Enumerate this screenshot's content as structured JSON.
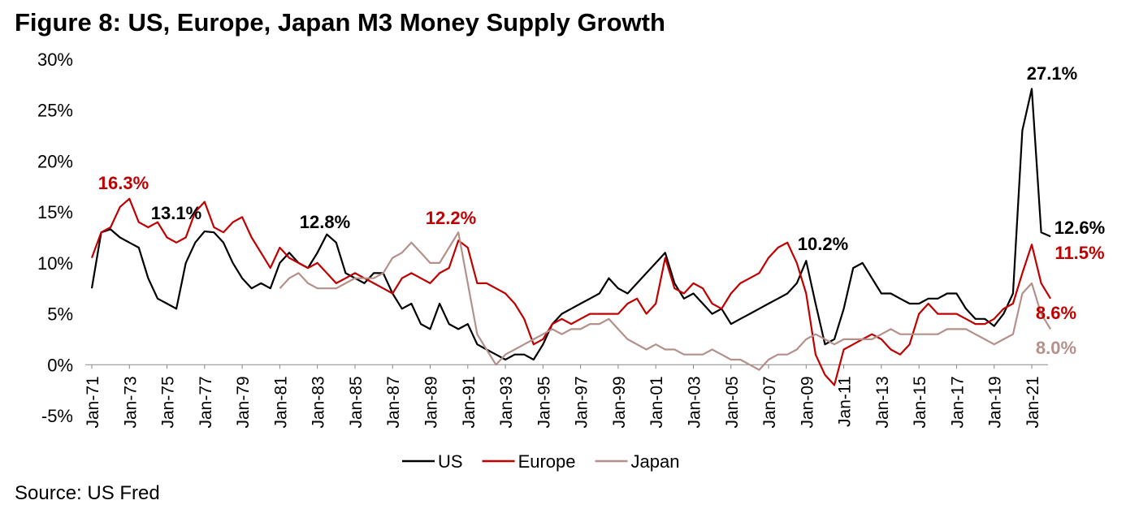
{
  "chart_data": {
    "type": "line",
    "title": "Figure 8: US, Europe, Japan M3 Money Supply Growth",
    "source": "Source: US Fred",
    "categories": [
      "Jan-71",
      null,
      null,
      null,
      "Jan-73",
      null,
      null,
      null,
      "Jan-75",
      null,
      null,
      null,
      "Jan-77",
      null,
      null,
      null,
      "Jan-79",
      null,
      null,
      null,
      "Jan-81",
      null,
      null,
      null,
      "Jan-83",
      null,
      null,
      null,
      "Jan-85",
      null,
      null,
      null,
      "Jan-87",
      null,
      null,
      null,
      "Jan-89",
      null,
      null,
      null,
      "Jan-91",
      null,
      null,
      null,
      "Jan-93",
      null,
      null,
      null,
      "Jan-95",
      null,
      null,
      null,
      "Jan-97",
      null,
      null,
      null,
      "Jan-99",
      null,
      null,
      null,
      "Jan-01",
      null,
      null,
      null,
      "Jan-03",
      null,
      null,
      null,
      "Jan-05",
      null,
      null,
      null,
      "Jan-07",
      null,
      null,
      null,
      "Jan-09",
      null,
      null,
      null,
      "Jan-11",
      null,
      null,
      null,
      "Jan-13",
      null,
      null,
      null,
      "Jan-15",
      null,
      null,
      null,
      "Jan-17",
      null,
      null,
      null,
      "Jan-19",
      null,
      null,
      null,
      "Jan-21",
      null,
      null
    ],
    "series": [
      {
        "name": "US",
        "color": "#000000",
        "values": [
          7.5,
          13,
          13.3,
          12.5,
          12,
          11.5,
          8.5,
          6.5,
          6,
          5.5,
          10,
          12,
          13.1,
          13,
          12,
          10,
          8.5,
          7.5,
          8,
          7.5,
          10,
          11,
          10,
          9.5,
          11,
          12.8,
          12,
          9,
          8.5,
          8,
          9,
          9,
          7,
          5.5,
          6,
          4,
          3.5,
          6,
          4,
          3.5,
          4,
          2,
          1.5,
          1,
          0.5,
          1,
          1,
          0.5,
          2,
          4,
          5,
          5.5,
          6,
          6.5,
          7,
          8.5,
          7.5,
          7,
          8,
          9,
          10,
          11,
          8,
          6.5,
          7,
          6,
          5,
          5.5,
          4,
          4.5,
          5,
          5.5,
          6,
          6.5,
          7,
          8,
          10.2,
          6,
          2,
          2.5,
          5.5,
          9.5,
          10,
          8.5,
          7,
          7,
          6.5,
          6,
          6,
          6.5,
          6.5,
          7,
          7,
          5.5,
          4.5,
          4.5,
          3.8,
          5,
          7,
          23,
          27.1,
          13,
          12.6
        ]
      },
      {
        "name": "Europe",
        "color": "#c00000",
        "values": [
          10.5,
          13,
          13.5,
          15.5,
          16.3,
          14,
          13.5,
          14,
          12.5,
          12,
          12.5,
          15,
          16,
          13.5,
          13,
          14,
          14.5,
          12.5,
          11,
          9.5,
          11.5,
          10.5,
          10,
          9.5,
          10,
          9,
          8,
          8.5,
          9,
          8.5,
          8,
          7.5,
          7,
          8.5,
          9,
          8.5,
          8,
          9,
          9.5,
          12.2,
          11.5,
          8,
          8,
          7.5,
          7,
          6,
          4.5,
          2,
          2.5,
          4,
          4.5,
          4,
          4.5,
          5,
          5,
          5,
          5,
          6,
          6.5,
          5,
          6,
          10.5,
          7.5,
          7,
          8,
          7.5,
          6,
          5.5,
          7,
          8,
          8.5,
          9,
          10.5,
          11.5,
          12,
          10,
          7,
          1,
          -1,
          -2,
          1.5,
          2,
          2.5,
          3,
          2.5,
          1.5,
          1,
          2,
          5,
          6,
          5,
          5,
          5,
          4.5,
          4,
          4,
          4.5,
          5.5,
          6,
          9,
          11.8,
          8,
          6.5
        ]
      },
      {
        "name": "Japan",
        "color": "#b4908b",
        "values": [
          null,
          null,
          null,
          null,
          null,
          null,
          null,
          null,
          null,
          null,
          null,
          null,
          null,
          null,
          null,
          null,
          null,
          null,
          null,
          null,
          7.5,
          8.5,
          9,
          8,
          7.5,
          7.5,
          7.5,
          8,
          8.5,
          8.5,
          8.5,
          9,
          10.5,
          11,
          12,
          11,
          10,
          10,
          11.5,
          13,
          8,
          3,
          1.5,
          0,
          1,
          1.5,
          2,
          2.5,
          3,
          3.5,
          3,
          3.5,
          3.5,
          4,
          4,
          4.5,
          3.5,
          2.5,
          2,
          1.5,
          2,
          1.5,
          1.5,
          1,
          1,
          1,
          1.5,
          1,
          0.5,
          0.5,
          0,
          -0.5,
          0.5,
          1,
          1,
          1.5,
          2.5,
          3,
          2.5,
          2,
          2.5,
          2.5,
          2.5,
          2.5,
          3,
          3.5,
          3,
          3,
          3,
          3,
          3,
          3.5,
          3.5,
          3.5,
          3,
          2.5,
          2,
          2.5,
          3,
          7,
          8,
          5,
          3.5
        ]
      }
    ],
    "annotations": [
      {
        "text": "16.3%",
        "color": "#c00000"
      },
      {
        "text": "13.1%",
        "color": "#000000"
      },
      {
        "text": "12.8%",
        "color": "#000000"
      },
      {
        "text": "12.2%",
        "color": "#c00000"
      },
      {
        "text": "10.2%",
        "color": "#000000"
      },
      {
        "text": "27.1%",
        "color": "#000000"
      },
      {
        "text": "12.6%",
        "color": "#000000"
      },
      {
        "text": "11.5%",
        "color": "#c00000"
      },
      {
        "text": "8.6%",
        "color": "#c00000"
      },
      {
        "text": "8.0%",
        "color": "#b4908b"
      }
    ],
    "ylim": [
      -5,
      30
    ],
    "yticks": [
      {
        "value": -5,
        "label": "-5%"
      },
      {
        "value": 0,
        "label": "0%"
      },
      {
        "value": 5,
        "label": "5%"
      },
      {
        "value": 10,
        "label": "10%"
      },
      {
        "value": 15,
        "label": "15%"
      },
      {
        "value": 20,
        "label": "20%"
      },
      {
        "value": 25,
        "label": "25%"
      },
      {
        "value": 30,
        "label": "30%"
      }
    ],
    "grid": false
  }
}
